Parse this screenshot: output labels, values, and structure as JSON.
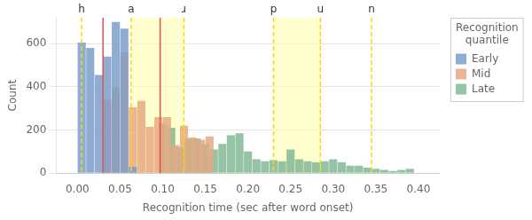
{
  "chart_data": {
    "type": "histogram",
    "xlabel": "Recognition time (sec after word onset)",
    "ylabel": "Count",
    "xlim": [
      0.0,
      0.4
    ],
    "ylim": [
      0,
      720
    ],
    "xticks": [
      {
        "value": 0.0,
        "label": "0.00"
      },
      0.05,
      {
        "value": 0.1,
        "label": "0.10"
      },
      0.15,
      {
        "value": 0.2,
        "label": "0.20"
      },
      0.25,
      {
        "value": 0.3,
        "label": "0.30"
      },
      0.35,
      {
        "value": 0.4,
        "label": "0.40"
      }
    ],
    "yticks": [
      0,
      200,
      400,
      600
    ],
    "grid": "y",
    "legend": "upper right",
    "legend_title": "Recognition\nquantile",
    "series": [
      {
        "name": "Early",
        "color": "#7b9dc9",
        "bins": [
          0.0,
          0.01,
          0.02,
          0.03,
          0.04,
          0.05,
          0.06,
          0.07
        ],
        "values": [
          605,
          580,
          455,
          540,
          700,
          670,
          30
        ]
      },
      {
        "name": "Mid",
        "color": "#e8a882",
        "bins": [
          0.03,
          0.04,
          0.05,
          0.06,
          0.07,
          0.08,
          0.09,
          0.1,
          0.11,
          0.12,
          0.13,
          0.14,
          0.15,
          0.16
        ],
        "values": [
          340,
          395,
          560,
          305,
          335,
          215,
          260,
          260,
          130,
          220,
          165,
          155,
          170
        ]
      },
      {
        "name": "Late",
        "color": "#82b896",
        "bins": [
          0.095,
          0.105,
          0.115,
          0.125,
          0.135,
          0.145,
          0.155,
          0.165,
          0.175,
          0.185,
          0.195,
          0.205,
          0.215,
          0.225,
          0.235,
          0.245,
          0.255,
          0.265,
          0.275,
          0.285,
          0.295,
          0.305,
          0.315,
          0.325,
          0.335,
          0.345,
          0.355,
          0.365,
          0.375,
          0.385,
          0.395
        ],
        "values": [
          230,
          210,
          120,
          160,
          160,
          135,
          110,
          135,
          175,
          185,
          100,
          65,
          55,
          60,
          55,
          110,
          65,
          55,
          50,
          55,
          65,
          50,
          35,
          35,
          25,
          20,
          15,
          10,
          15,
          20
        ]
      }
    ],
    "shaded_ranges": [
      {
        "range": [
          0.063,
          0.125
        ],
        "color": "#ffff88"
      },
      {
        "range": [
          0.23,
          0.285
        ],
        "color": "#ffff88"
      }
    ],
    "vlines": [
      {
        "x": 0.03,
        "color": "#e05050"
      },
      {
        "x": 0.097,
        "color": "#e05050"
      }
    ],
    "annotations": [
      {
        "x": 0.005,
        "text": "h",
        "color": "gold",
        "line_style": "dashed"
      },
      {
        "x": 0.063,
        "text": "a",
        "color": "gold",
        "line_style": "dashed"
      },
      {
        "x": 0.125,
        "text": "ɹ",
        "color": "gold",
        "line_style": "dashed"
      },
      {
        "x": 0.23,
        "text": "p",
        "color": "gold",
        "line_style": "dashed"
      },
      {
        "x": 0.285,
        "text": "u",
        "color": "gold",
        "line_style": "dashed"
      },
      {
        "x": 0.345,
        "text": "n",
        "color": "gold",
        "line_style": "dashed"
      }
    ]
  }
}
